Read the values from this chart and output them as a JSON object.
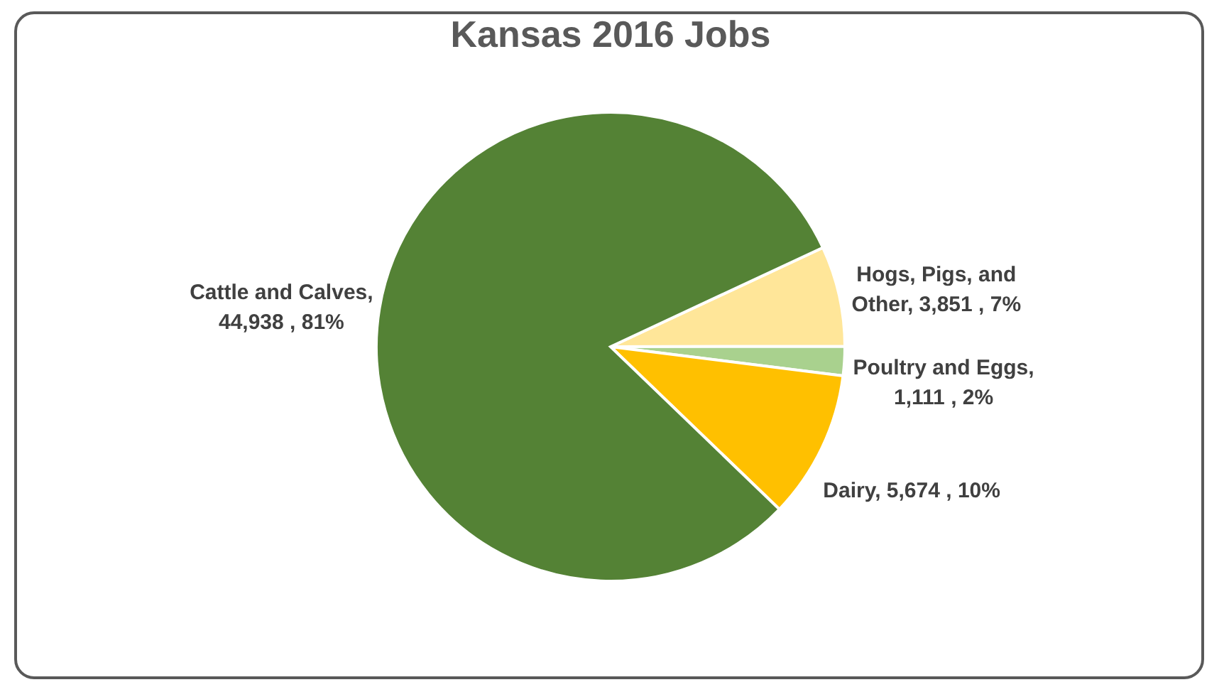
{
  "chart_data": {
    "type": "pie",
    "title": "Kansas 2016 Jobs",
    "categories": [
      "Hogs, Pigs, and Other",
      "Poultry and Eggs",
      "Dairy",
      "Cattle and Calves"
    ],
    "values": [
      3851,
      1111,
      5674,
      44938
    ],
    "value_labels": [
      ", 3,851 , 7%",
      ", 1,111 , 2%",
      ", 5,674 , 10%",
      ", 44,938 , 81%"
    ],
    "colors": [
      "#ffe699",
      "#a9d18e",
      "#ffc000",
      "#548235"
    ],
    "legend": false
  }
}
